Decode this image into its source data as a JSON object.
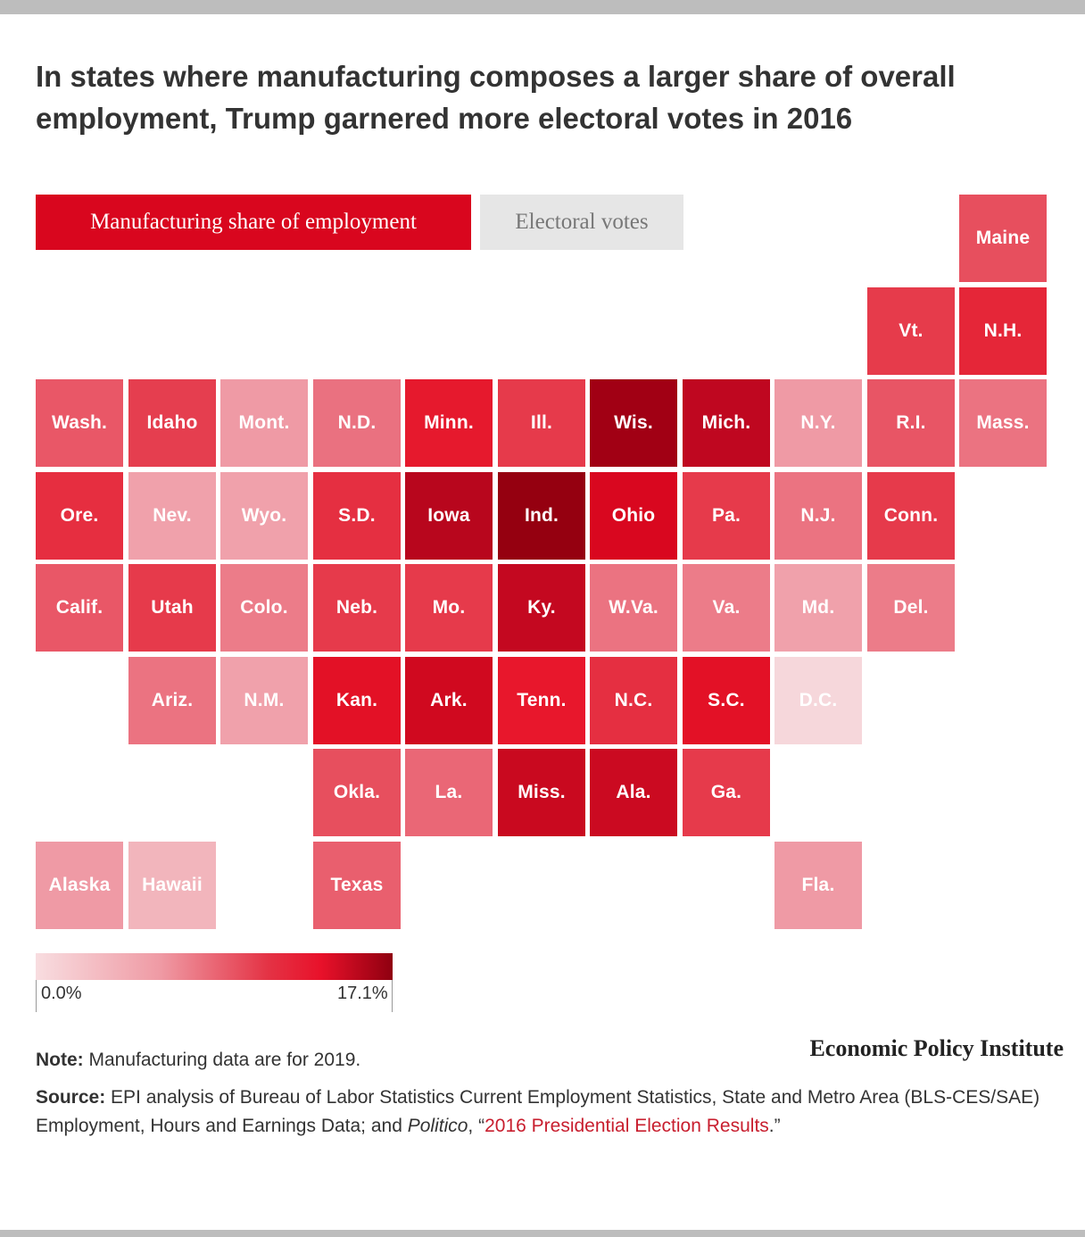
{
  "title": "In states where manufacturing composes a larger share of overall employment, Trump garnered more electoral votes in 2016",
  "tabs": {
    "active": "Manufacturing share of employment",
    "inactive": "Electoral votes"
  },
  "map_data": {
    "type": "tile-grid-choropleth",
    "value_label": "Manufacturing share of employment",
    "scale": {
      "min_label": "0.0%",
      "max_label": "17.1%",
      "min": 0.0,
      "max": 17.1
    },
    "tiles": [
      {
        "label": "Maine",
        "row": 0,
        "col": 10,
        "color": "#e74f5e"
      },
      {
        "label": "Vt.",
        "row": 1,
        "col": 9,
        "color": "#e63b4b"
      },
      {
        "label": "N.H.",
        "row": 1,
        "col": 10,
        "color": "#e52638"
      },
      {
        "label": "Wash.",
        "row": 2,
        "col": 0,
        "color": "#e95767"
      },
      {
        "label": "Idaho",
        "row": 2,
        "col": 1,
        "color": "#e53e4f"
      },
      {
        "label": "Mont.",
        "row": 2,
        "col": 2,
        "color": "#ef9aa5"
      },
      {
        "label": "N.D.",
        "row": 2,
        "col": 3,
        "color": "#ea7180"
      },
      {
        "label": "Minn.",
        "row": 2,
        "col": 4,
        "color": "#e6192d"
      },
      {
        "label": "Ill.",
        "row": 2,
        "col": 5,
        "color": "#e63a4b"
      },
      {
        "label": "Wis.",
        "row": 2,
        "col": 6,
        "color": "#a10014"
      },
      {
        "label": "Mich.",
        "row": 2,
        "col": 7,
        "color": "#bf0720"
      },
      {
        "label": "N.Y.",
        "row": 2,
        "col": 8,
        "color": "#ef9aa5"
      },
      {
        "label": "R.I.",
        "row": 2,
        "col": 9,
        "color": "#e85565"
      },
      {
        "label": "Mass.",
        "row": 2,
        "col": 10,
        "color": "#eb7381"
      },
      {
        "label": "Ore.",
        "row": 3,
        "col": 0,
        "color": "#e62e40"
      },
      {
        "label": "Nev.",
        "row": 3,
        "col": 1,
        "color": "#f0a1ab"
      },
      {
        "label": "Wyo.",
        "row": 3,
        "col": 2,
        "color": "#f0a1ab"
      },
      {
        "label": "S.D.",
        "row": 3,
        "col": 3,
        "color": "#e52f41"
      },
      {
        "label": "Iowa",
        "row": 3,
        "col": 4,
        "color": "#b8061d"
      },
      {
        "label": "Ind.",
        "row": 3,
        "col": 5,
        "color": "#950010"
      },
      {
        "label": "Ohio",
        "row": 3,
        "col": 6,
        "color": "#d9071f"
      },
      {
        "label": "Pa.",
        "row": 3,
        "col": 7,
        "color": "#e63a4b"
      },
      {
        "label": "N.J.",
        "row": 3,
        "col": 8,
        "color": "#eb7381"
      },
      {
        "label": "Conn.",
        "row": 3,
        "col": 9,
        "color": "#e63a4b"
      },
      {
        "label": "Calif.",
        "row": 4,
        "col": 0,
        "color": "#e95767"
      },
      {
        "label": "Utah",
        "row": 4,
        "col": 1,
        "color": "#e63a4b"
      },
      {
        "label": "Colo.",
        "row": 4,
        "col": 2,
        "color": "#ec7c89"
      },
      {
        "label": "Neb.",
        "row": 4,
        "col": 3,
        "color": "#e63a4b"
      },
      {
        "label": "Mo.",
        "row": 4,
        "col": 4,
        "color": "#e63a4b"
      },
      {
        "label": "Ky.",
        "row": 4,
        "col": 5,
        "color": "#c40820"
      },
      {
        "label": "W.Va.",
        "row": 4,
        "col": 6,
        "color": "#eb7381"
      },
      {
        "label": "Va.",
        "row": 4,
        "col": 7,
        "color": "#ec7c89"
      },
      {
        "label": "Md.",
        "row": 4,
        "col": 8,
        "color": "#f0a1ab"
      },
      {
        "label": "Del.",
        "row": 4,
        "col": 9,
        "color": "#ec7c89"
      },
      {
        "label": "Ariz.",
        "row": 5,
        "col": 1,
        "color": "#eb7381"
      },
      {
        "label": "N.M.",
        "row": 5,
        "col": 2,
        "color": "#f0a1ab"
      },
      {
        "label": "Kan.",
        "row": 5,
        "col": 3,
        "color": "#e31126"
      },
      {
        "label": "Ark.",
        "row": 5,
        "col": 4,
        "color": "#d0091f"
      },
      {
        "label": "Tenn.",
        "row": 5,
        "col": 5,
        "color": "#e8172c"
      },
      {
        "label": "N.C.",
        "row": 5,
        "col": 6,
        "color": "#e52f41"
      },
      {
        "label": "S.C.",
        "row": 5,
        "col": 7,
        "color": "#e31126"
      },
      {
        "label": "D.C.",
        "row": 5,
        "col": 8,
        "color": "#f6d7db"
      },
      {
        "label": "Okla.",
        "row": 6,
        "col": 3,
        "color": "#e74f5e"
      },
      {
        "label": "La.",
        "row": 6,
        "col": 4,
        "color": "#ea6776"
      },
      {
        "label": "Miss.",
        "row": 6,
        "col": 5,
        "color": "#c9091f"
      },
      {
        "label": "Ala.",
        "row": 6,
        "col": 6,
        "color": "#cb0a21"
      },
      {
        "label": "Ga.",
        "row": 6,
        "col": 7,
        "color": "#e63a4b"
      },
      {
        "label": "Alaska",
        "row": 7,
        "col": 0,
        "color": "#ef9aa5"
      },
      {
        "label": "Hawaii",
        "row": 7,
        "col": 1,
        "color": "#f2b5bc"
      },
      {
        "label": "Texas",
        "row": 7,
        "col": 3,
        "color": "#e95f6e"
      },
      {
        "label": "Fla.",
        "row": 7,
        "col": 8,
        "color": "#ef9aa5"
      }
    ]
  },
  "note": {
    "label": "Note:",
    "text": " Manufacturing data are for 2019."
  },
  "source": {
    "label": "Source:",
    "text_before": " EPI analysis of Bureau of Labor Statistics Current Employment Statistics, State and Metro Area (BLS-CES/SAE) Employment, Hours and Earnings Data; and ",
    "publication": "Politico",
    "text_middle": ", “",
    "link_text": "2016 Presidential Election Results",
    "text_after": ".”"
  },
  "brand": "Economic Policy Institute"
}
